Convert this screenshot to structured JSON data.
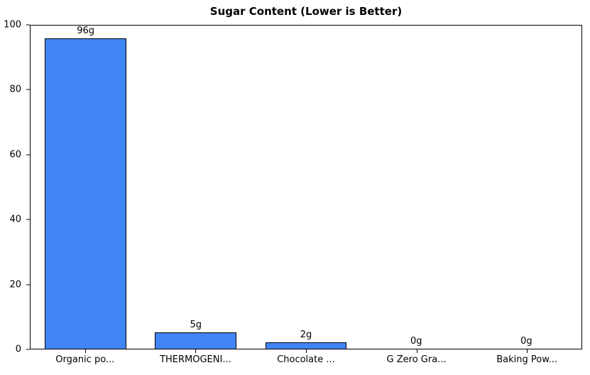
{
  "chart_data": {
    "type": "bar",
    "title": "Sugar Content (Lower is Better)",
    "categories": [
      "Organic po...",
      "THERMOGENI...",
      "Chocolate ...",
      "G Zero Gra...",
      "Baking Pow..."
    ],
    "values": [
      96,
      5,
      2,
      0,
      0
    ],
    "bar_labels": [
      "96g",
      "5g",
      "2g",
      "0g",
      "0g"
    ],
    "xlabel": "",
    "ylabel": "",
    "ylim": [
      0,
      100
    ],
    "yticks": [
      0,
      20,
      40,
      60,
      80,
      100
    ],
    "grid": false,
    "legend_position": "none",
    "bar_color": "#4285f4",
    "bar_edge_color": "#000000",
    "background_color": "#ffffff"
  }
}
